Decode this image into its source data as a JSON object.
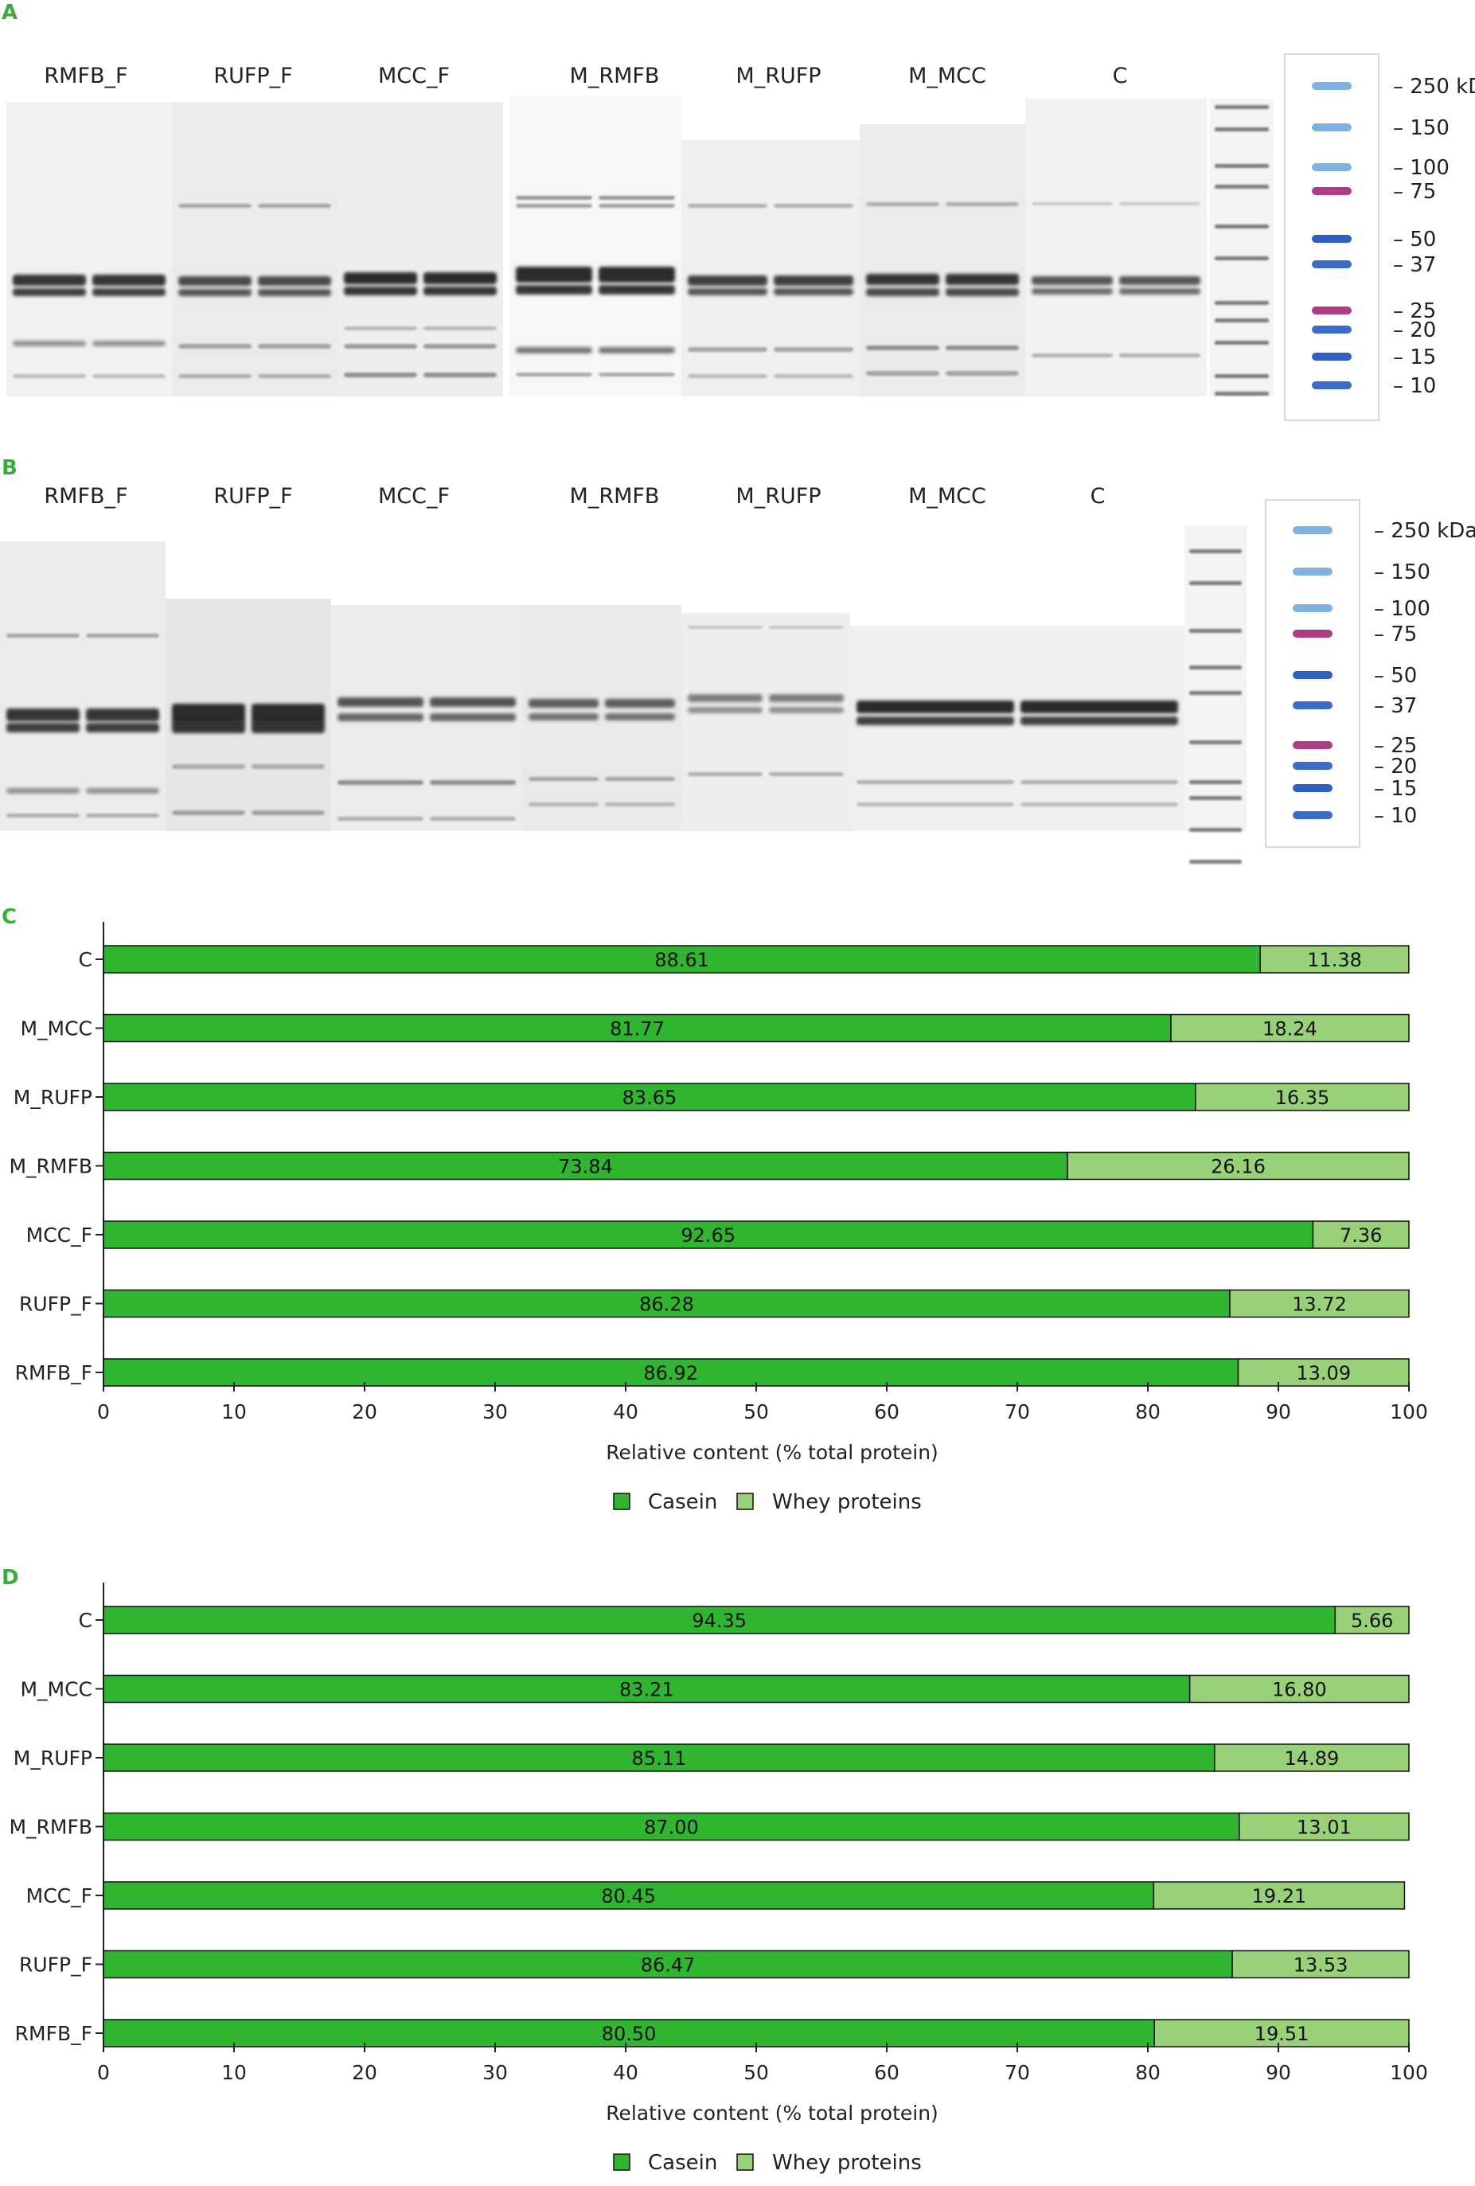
{
  "panels": {
    "a": "A",
    "b": "B",
    "c": "C",
    "d": "D"
  },
  "gels": [
    {
      "lanes": [
        "RMFB_F",
        "RUFP_F",
        "MCC_F",
        "M_RMFB",
        "M_RUFP",
        "M_MCC",
        "C"
      ]
    },
    {
      "lanes": [
        "RMFB_F",
        "RUFP_F",
        "MCC_F",
        "M_RMFB",
        "M_RUFP",
        "M_MCC",
        "C"
      ]
    }
  ],
  "ladder": {
    "markers": [
      "– 250 kDa",
      "– 150",
      "– 100",
      "– 75",
      "– 50",
      "– 37",
      "– 25",
      "– 20",
      "– 15",
      "– 10"
    ],
    "marker_kda": [
      250,
      150,
      100,
      75,
      50,
      37,
      25,
      20,
      15,
      10
    ],
    "colors": [
      "#7fb2e0",
      "#7fb2e0",
      "#7fb2e0",
      "#b03c86",
      "#2f5fc0",
      "#3a6cc8",
      "#b03c86",
      "#3a6cc8",
      "#2f5fc0",
      "#3a6cc8"
    ]
  },
  "colors": {
    "casein": "#2fb52f",
    "whey": "#99d179",
    "panel_letter": "#3aae3a"
  },
  "chart_data": [
    {
      "type": "bar",
      "orientation": "horizontal",
      "stacked": true,
      "categories": [
        "C",
        "M_MCC",
        "M_RUFP",
        "M_RMFB",
        "MCC_F",
        "RUFP_F",
        "RMFB_F"
      ],
      "series": [
        {
          "name": "Casein",
          "values": [
            88.61,
            81.77,
            83.65,
            73.84,
            92.65,
            86.28,
            86.92
          ]
        },
        {
          "name": "Whey proteins",
          "values": [
            11.38,
            18.24,
            16.35,
            26.16,
            7.36,
            13.72,
            13.09
          ]
        }
      ],
      "value_labels": {
        "casein": [
          "88.61",
          "81.77",
          "83.65",
          "73.84",
          "92.65",
          "86.28",
          "86.92"
        ],
        "whey": [
          "11.38",
          "18.24",
          "16.35",
          "26.16",
          "7.36",
          "13.72",
          "13.09"
        ]
      },
      "xlabel": "Relative content (% total protein)",
      "xlim": [
        0,
        100
      ],
      "xticks": [
        "0",
        "10",
        "20",
        "30",
        "40",
        "50",
        "60",
        "70",
        "80",
        "90",
        "100"
      ],
      "legend_position": "bottom-center",
      "grid": false
    },
    {
      "type": "bar",
      "orientation": "horizontal",
      "stacked": true,
      "categories": [
        "C",
        "M_MCC",
        "M_RUFP",
        "M_RMFB",
        "MCC_F",
        "RUFP_F",
        "RMFB_F"
      ],
      "series": [
        {
          "name": "Casein",
          "values": [
            94.35,
            83.21,
            85.11,
            87.0,
            80.45,
            86.47,
            80.5
          ]
        },
        {
          "name": "Whey proteins",
          "values": [
            5.66,
            16.8,
            14.89,
            13.01,
            19.21,
            13.53,
            19.51
          ]
        }
      ],
      "value_labels": {
        "casein": [
          "94.35",
          "83.21",
          "85.11",
          "87.00",
          "80.45",
          "86.47",
          "80.50"
        ],
        "whey": [
          "5.66",
          "16.80",
          "14.89",
          "13.01",
          "19.21",
          "13.53",
          "19.51"
        ]
      },
      "xlabel": "Relative content (% total protein)",
      "xlim": [
        0,
        100
      ],
      "xticks": [
        "0",
        "10",
        "20",
        "30",
        "40",
        "50",
        "60",
        "70",
        "80",
        "90",
        "100"
      ],
      "legend_position": "bottom-center",
      "grid": false
    }
  ]
}
